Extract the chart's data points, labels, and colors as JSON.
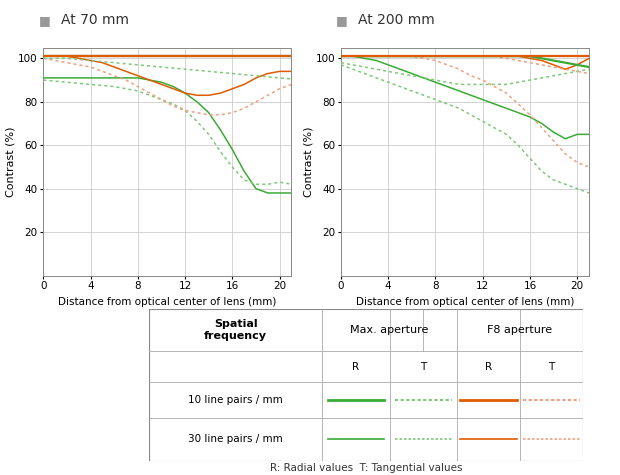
{
  "title_70": "At 70 mm",
  "title_200": "At 200 mm",
  "xlabel": "Distance from optical center of lens (mm)",
  "ylabel": "Contrast (%)",
  "xlim": [
    0,
    21
  ],
  "ylim": [
    0,
    105
  ],
  "xticks": [
    0,
    4,
    8,
    12,
    16,
    20
  ],
  "yticks": [
    20,
    40,
    60,
    80,
    100
  ],
  "green_solid": "#3aaa35",
  "green_dotted": "#7ec87a",
  "orange_solid": "#e05a00",
  "orange_dotted": "#f0a080",
  "grid_color": "#cccccc",
  "bg_color": "#ffffff",
  "x": [
    0,
    1,
    2,
    3,
    4,
    5,
    6,
    7,
    8,
    9,
    10,
    11,
    12,
    13,
    14,
    15,
    16,
    17,
    18,
    19,
    20,
    21
  ],
  "at70_10lp_max_R": [
    101,
    101,
    101,
    101,
    101,
    101,
    101,
    101,
    101,
    101,
    101,
    101,
    101,
    101,
    101,
    101,
    101,
    101,
    101,
    101,
    101,
    101
  ],
  "at70_10lp_max_T": [
    100,
    100,
    100,
    99.5,
    99,
    98.5,
    98,
    97.5,
    97,
    96.5,
    96,
    95.5,
    95,
    94.5,
    94,
    93.5,
    93,
    92.5,
    92,
    91.5,
    91,
    90.5
  ],
  "at70_10lp_f8_R": [
    101,
    101,
    101,
    101,
    101,
    101,
    101,
    101,
    101,
    101,
    101,
    101,
    101,
    101,
    101,
    101,
    101,
    101,
    101,
    101,
    101,
    101
  ],
  "at70_10lp_f8_T": [
    101,
    101,
    101,
    101,
    101,
    101,
    101,
    101,
    101,
    101,
    101,
    101,
    101,
    101,
    101,
    101,
    101,
    101,
    101,
    101,
    101,
    101
  ],
  "at70_30lp_max_R": [
    91,
    91,
    91,
    91,
    91,
    91,
    91,
    91,
    91,
    90,
    89,
    87,
    84,
    80,
    75,
    67,
    58,
    48,
    40,
    38,
    38,
    38
  ],
  "at70_30lp_max_T": [
    90,
    89.5,
    89,
    88.5,
    88,
    87.5,
    87,
    86,
    85,
    83,
    81,
    79,
    76,
    71,
    65,
    57,
    50,
    44,
    42,
    42,
    43,
    42
  ],
  "at70_30lp_f8_R": [
    101,
    101,
    101,
    100,
    99,
    98,
    96,
    94,
    92,
    90,
    88,
    86,
    84,
    83,
    83,
    84,
    86,
    88,
    91,
    93,
    94,
    94
  ],
  "at70_30lp_f8_T": [
    100,
    99,
    98,
    97,
    96,
    94,
    92,
    90,
    87,
    84,
    81,
    78,
    76,
    75,
    74,
    74,
    75,
    77,
    80,
    83,
    86,
    88
  ],
  "at200_10lp_max_R": [
    101,
    101,
    101,
    101,
    101,
    101,
    101,
    101,
    101,
    101,
    101,
    101,
    101,
    101,
    101,
    101,
    101,
    100,
    99,
    98,
    97,
    96
  ],
  "at200_10lp_max_T": [
    98,
    97,
    96,
    95,
    94,
    93,
    92,
    91,
    90,
    89,
    88,
    88,
    88,
    88,
    88,
    89,
    90,
    91,
    92,
    93,
    94,
    95
  ],
  "at200_10lp_f8_R": [
    101,
    101,
    101,
    101,
    101,
    101,
    101,
    101,
    101,
    101,
    101,
    101,
    101,
    101,
    101,
    101,
    101,
    101,
    101,
    101,
    101,
    101
  ],
  "at200_10lp_f8_T": [
    101,
    101,
    101,
    101,
    101,
    101,
    101,
    101,
    101,
    101,
    101,
    101,
    101,
    101,
    100,
    99,
    98,
    97,
    96,
    95,
    94,
    93
  ],
  "at200_30lp_max_R": [
    101,
    101,
    100,
    99,
    97,
    95,
    93,
    91,
    89,
    87,
    85,
    83,
    81,
    79,
    77,
    75,
    73,
    70,
    66,
    63,
    65,
    65
  ],
  "at200_30lp_max_T": [
    97,
    95,
    93,
    91,
    89,
    87,
    85,
    83,
    81,
    79,
    77,
    74,
    71,
    68,
    65,
    60,
    54,
    48,
    44,
    42,
    40,
    38
  ],
  "at200_30lp_f8_R": [
    101,
    101,
    101,
    101,
    101,
    101,
    101,
    101,
    101,
    101,
    101,
    101,
    101,
    101,
    101,
    101,
    100,
    99,
    97,
    95,
    97,
    100
  ],
  "at200_30lp_f8_T": [
    101,
    101,
    101,
    101,
    101,
    101,
    101,
    100,
    99,
    97,
    95,
    92,
    90,
    87,
    84,
    79,
    74,
    68,
    62,
    56,
    52,
    50
  ]
}
